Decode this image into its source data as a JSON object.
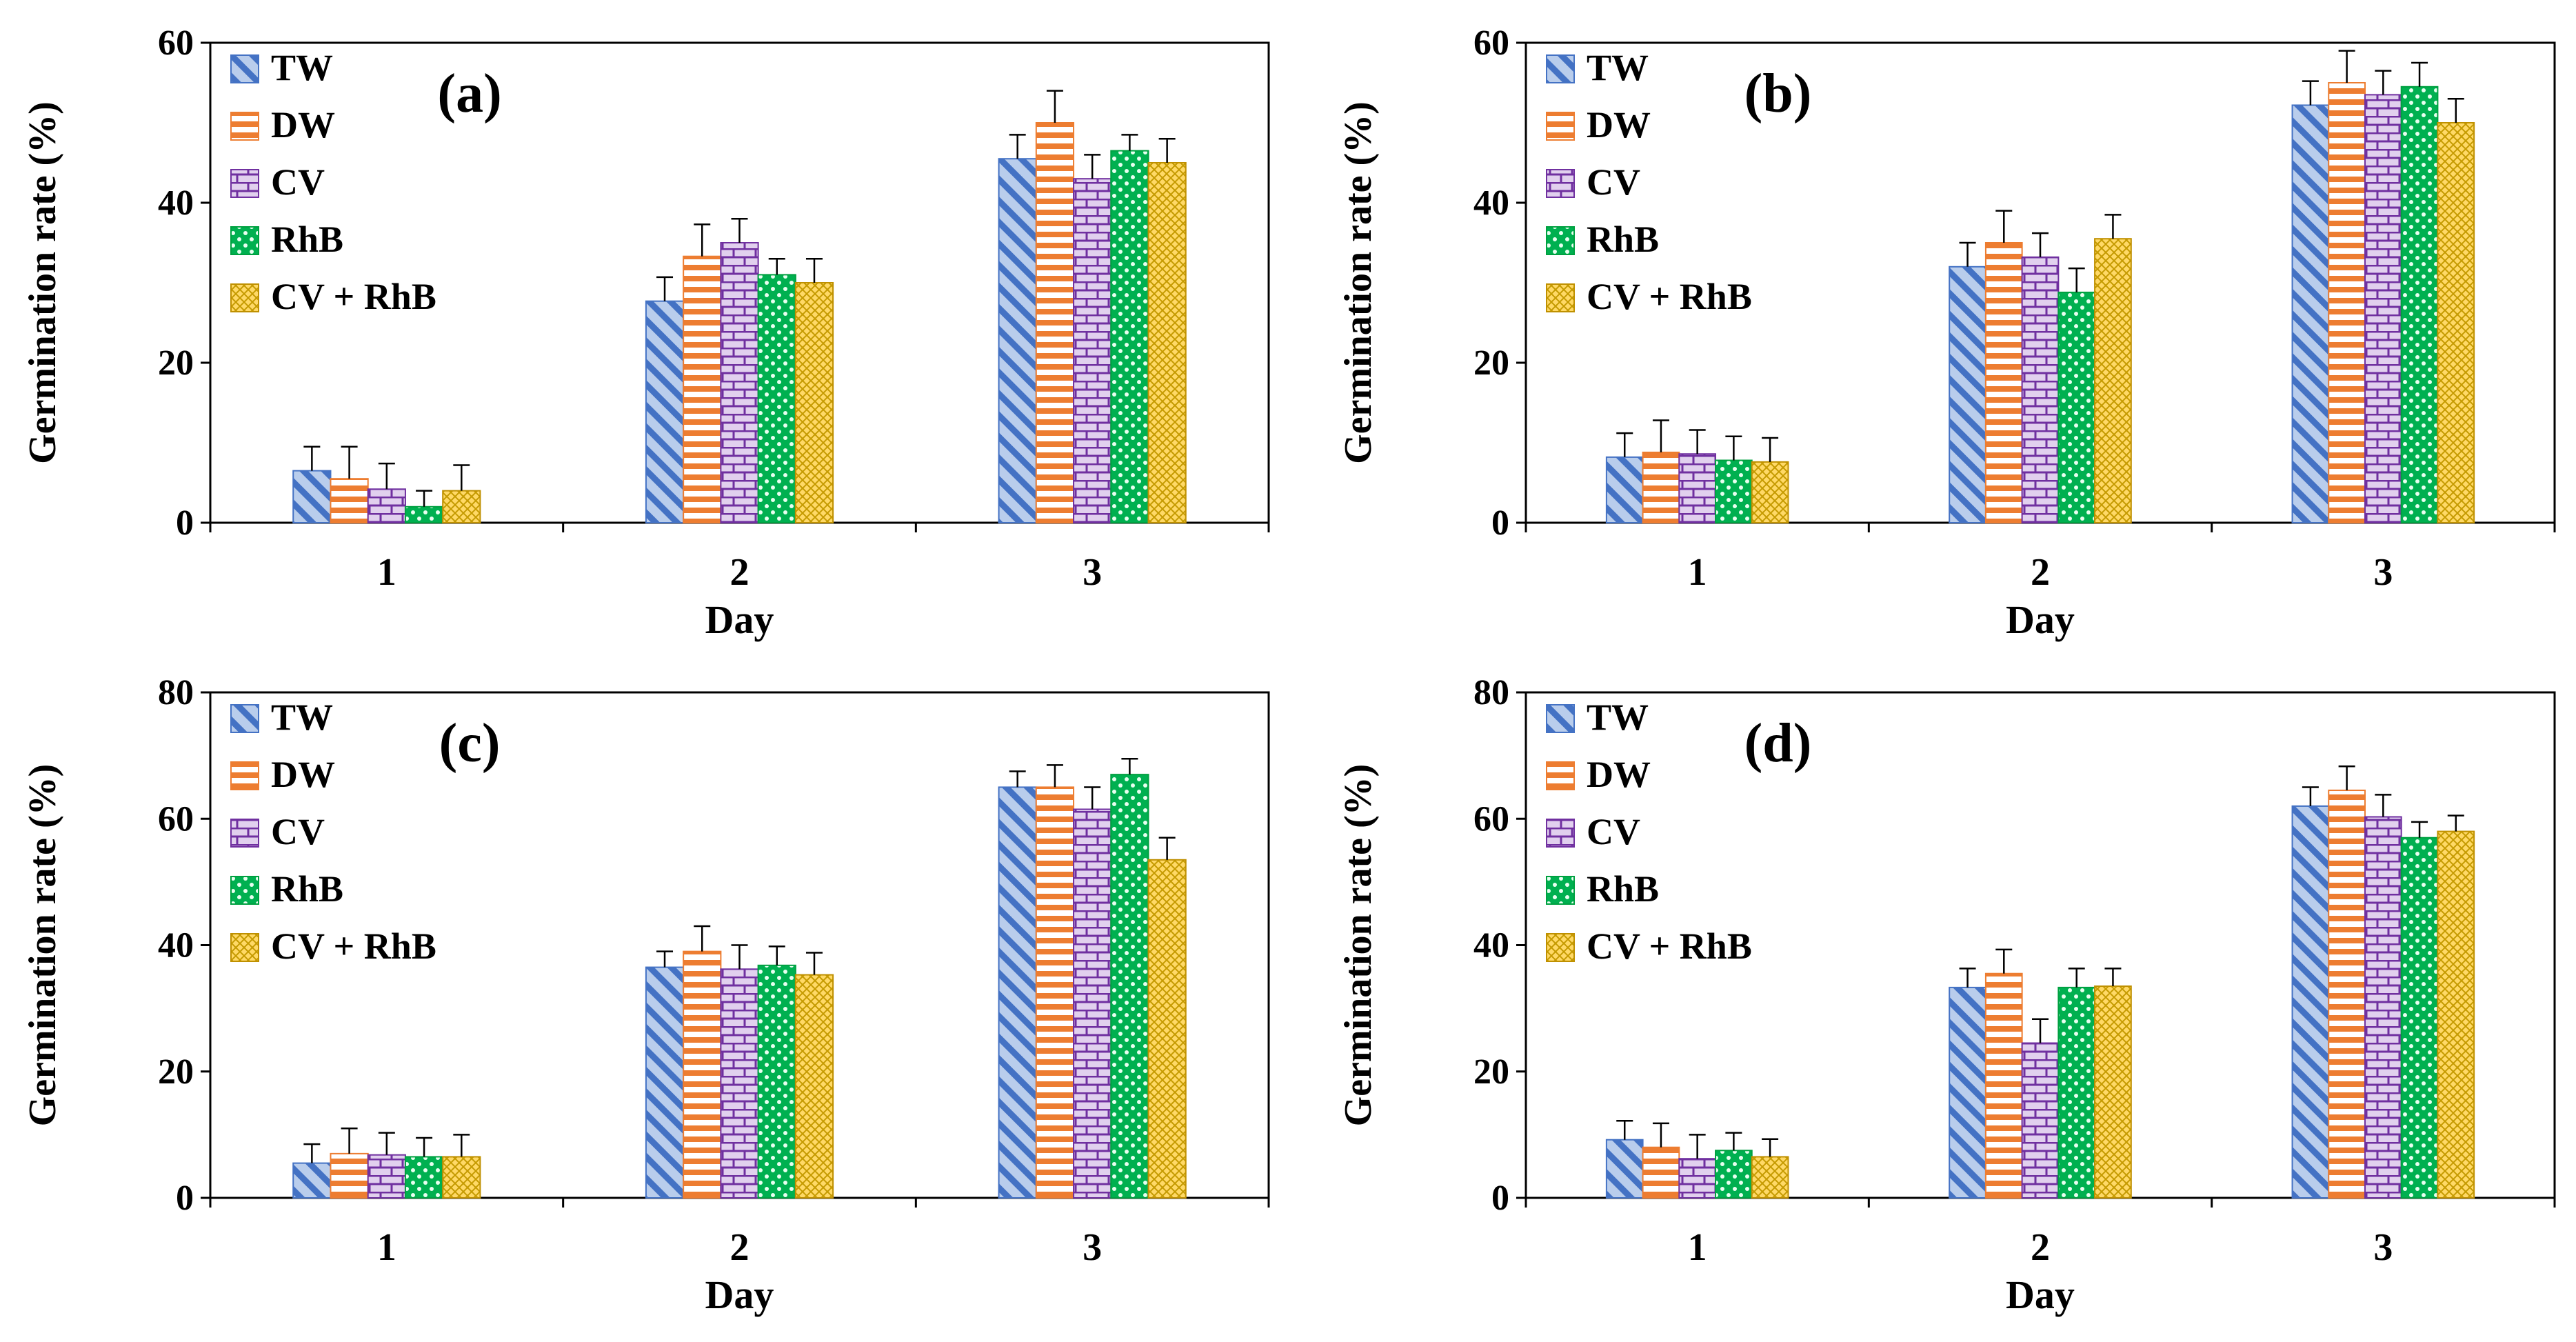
{
  "figure_legend": {
    "series": [
      {
        "name": "TW",
        "fill": "#b9cdec",
        "stroke": "#4472c4",
        "pattern": "diag"
      },
      {
        "name": "DW",
        "fill": "#ffffff",
        "stroke": "#ed7d31",
        "pattern": "horiz"
      },
      {
        "name": "CV",
        "fill": "#e1d0ee",
        "stroke": "#7030a0",
        "pattern": "brick"
      },
      {
        "name": "RhB",
        "fill": "#00b050",
        "stroke": "#00a040",
        "pattern": "dots"
      },
      {
        "name": "CV + RhB",
        "fill": "#ffd966",
        "stroke": "#bf9000",
        "pattern": "grid"
      }
    ]
  },
  "chart_data": [
    {
      "type": "bar",
      "panel_label": "(a)",
      "ylabel": "Germination rate (%)",
      "xlabel": "Day",
      "categories": [
        "1",
        "2",
        "3"
      ],
      "ylim": [
        0,
        60
      ],
      "yticks": [
        "0",
        "20",
        "40",
        "60"
      ],
      "series": [
        {
          "name": "TW",
          "values": [
            6.5,
            27.7,
            45.5
          ],
          "errors": [
            3.0,
            3.0,
            3.0
          ]
        },
        {
          "name": "DW",
          "values": [
            5.5,
            33.3,
            50.0
          ],
          "errors": [
            4.0,
            4.0,
            4.0
          ]
        },
        {
          "name": "CV",
          "values": [
            4.2,
            35.0,
            43.0
          ],
          "errors": [
            3.2,
            3.0,
            3.0
          ]
        },
        {
          "name": "RhB",
          "values": [
            2.0,
            31.0,
            46.5
          ],
          "errors": [
            2.0,
            2.0,
            2.0
          ]
        },
        {
          "name": "CV + RhB",
          "values": [
            4.0,
            30.0,
            45.0
          ],
          "errors": [
            3.2,
            3.0,
            3.0
          ]
        }
      ]
    },
    {
      "type": "bar",
      "panel_label": "(b)",
      "ylabel": "Germination rate (%)",
      "xlabel": "Day",
      "categories": [
        "1",
        "2",
        "3"
      ],
      "ylim": [
        0,
        60
      ],
      "yticks": [
        "0",
        "20",
        "40",
        "60"
      ],
      "series": [
        {
          "name": "TW",
          "values": [
            8.2,
            32.0,
            52.2
          ],
          "errors": [
            3.0,
            3.0,
            3.0
          ]
        },
        {
          "name": "DW",
          "values": [
            8.8,
            35.0,
            55.0
          ],
          "errors": [
            4.0,
            4.0,
            4.0
          ]
        },
        {
          "name": "CV",
          "values": [
            8.6,
            33.2,
            53.5
          ],
          "errors": [
            3.0,
            3.0,
            3.0
          ]
        },
        {
          "name": "RhB",
          "values": [
            7.8,
            28.8,
            54.5
          ],
          "errors": [
            3.0,
            3.0,
            3.0
          ]
        },
        {
          "name": "CV + RhB",
          "values": [
            7.6,
            35.5,
            50.0
          ],
          "errors": [
            3.0,
            3.0,
            3.0
          ]
        }
      ]
    },
    {
      "type": "bar",
      "panel_label": "(c)",
      "ylabel": "Germination rate (%)",
      "xlabel": "Day",
      "categories": [
        "1",
        "2",
        "3"
      ],
      "ylim": [
        0,
        80
      ],
      "yticks": [
        "0",
        "20",
        "40",
        "60",
        "80"
      ],
      "series": [
        {
          "name": "TW",
          "values": [
            5.5,
            36.5,
            65.0
          ],
          "errors": [
            3.0,
            2.5,
            2.5
          ]
        },
        {
          "name": "DW",
          "values": [
            7.0,
            39.0,
            65.0
          ],
          "errors": [
            4.0,
            4.0,
            3.5
          ]
        },
        {
          "name": "CV",
          "values": [
            6.8,
            36.2,
            61.5
          ],
          "errors": [
            3.5,
            3.8,
            3.5
          ]
        },
        {
          "name": "RhB",
          "values": [
            6.5,
            36.8,
            67.0
          ],
          "errors": [
            3.0,
            3.0,
            2.5
          ]
        },
        {
          "name": "CV + RhB",
          "values": [
            6.5,
            35.3,
            53.5
          ],
          "errors": [
            3.5,
            3.5,
            3.5
          ]
        }
      ]
    },
    {
      "type": "bar",
      "panel_label": "(d)",
      "ylabel": "Germination rate (%)",
      "xlabel": "Day",
      "categories": [
        "1",
        "2",
        "3"
      ],
      "ylim": [
        0,
        80
      ],
      "yticks": [
        "0",
        "20",
        "40",
        "60",
        "80"
      ],
      "series": [
        {
          "name": "TW",
          "values": [
            9.2,
            33.3,
            62.0
          ],
          "errors": [
            3.0,
            3.0,
            3.0
          ]
        },
        {
          "name": "DW",
          "values": [
            8.0,
            35.5,
            64.5
          ],
          "errors": [
            3.8,
            3.8,
            3.8
          ]
        },
        {
          "name": "CV",
          "values": [
            6.2,
            24.5,
            60.3
          ],
          "errors": [
            3.8,
            3.8,
            3.5
          ]
        },
        {
          "name": "RhB",
          "values": [
            7.5,
            33.3,
            57.0
          ],
          "errors": [
            2.8,
            3.0,
            2.5
          ]
        },
        {
          "name": "CV + RhB",
          "values": [
            6.5,
            33.5,
            58.0
          ],
          "errors": [
            2.8,
            2.8,
            2.5
          ]
        }
      ]
    }
  ]
}
